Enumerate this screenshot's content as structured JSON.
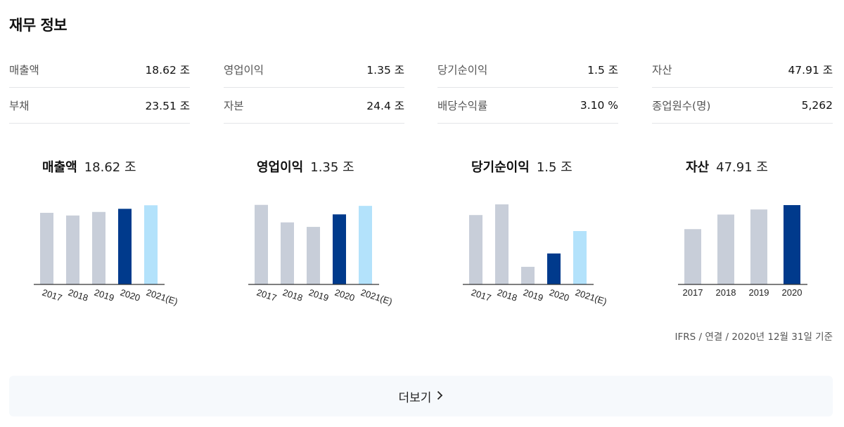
{
  "title": "재무 정보",
  "metrics": [
    [
      {
        "label": "매출액",
        "value": "18.62 조"
      },
      {
        "label": "부채",
        "value": "23.51 조"
      }
    ],
    [
      {
        "label": "영업이익",
        "value": "1.35 조"
      },
      {
        "label": "자본",
        "value": "24.4 조"
      }
    ],
    [
      {
        "label": "당기순이익",
        "value": "1.5 조"
      },
      {
        "label": "배당수익률",
        "value": "3.10 %"
      }
    ],
    [
      {
        "label": "자산",
        "value": "47.91 조"
      },
      {
        "label": "종업원수(명)",
        "value": "5,262"
      }
    ]
  ],
  "chart_data": [
    {
      "type": "bar",
      "title": "매출액",
      "headline_value": "18.62 조",
      "categories": [
        "2017",
        "2018",
        "2019",
        "2020",
        "2021(E)"
      ],
      "values": [
        16.1,
        15.5,
        16.3,
        17.0,
        17.8
      ],
      "ylim": [
        0,
        18
      ]
    },
    {
      "type": "bar",
      "title": "영업이익",
      "headline_value": "1.35 조",
      "categories": [
        "2017",
        "2018",
        "2019",
        "2020",
        "2021(E)"
      ],
      "values": [
        1.59,
        1.24,
        1.15,
        1.4,
        1.57
      ],
      "ylim": [
        0,
        1.6
      ]
    },
    {
      "type": "bar",
      "title": "당기순이익",
      "headline_value": "1.5 조",
      "categories": [
        "2017",
        "2018",
        "2019",
        "2020",
        "2021(E)"
      ],
      "values": [
        1.3,
        1.5,
        0.33,
        0.58,
        1.0
      ],
      "ylim": [
        0,
        1.5
      ]
    },
    {
      "type": "bar",
      "title": "자산",
      "headline_value": "47.91 조",
      "categories": [
        "2017",
        "2018",
        "2019",
        "2020"
      ],
      "values": [
        38.0,
        48.0,
        51.5,
        54.5
      ],
      "ylim": [
        0,
        55
      ]
    }
  ],
  "colors": {
    "past": "#c8ced9",
    "current": "#003a8c",
    "estimate": "#b3e2fb"
  },
  "footnote": "IFRS  /  연결  /  2020년 12월 31일 기준",
  "more_button": {
    "label": "더보기",
    "icon": "chevron-right-icon"
  }
}
